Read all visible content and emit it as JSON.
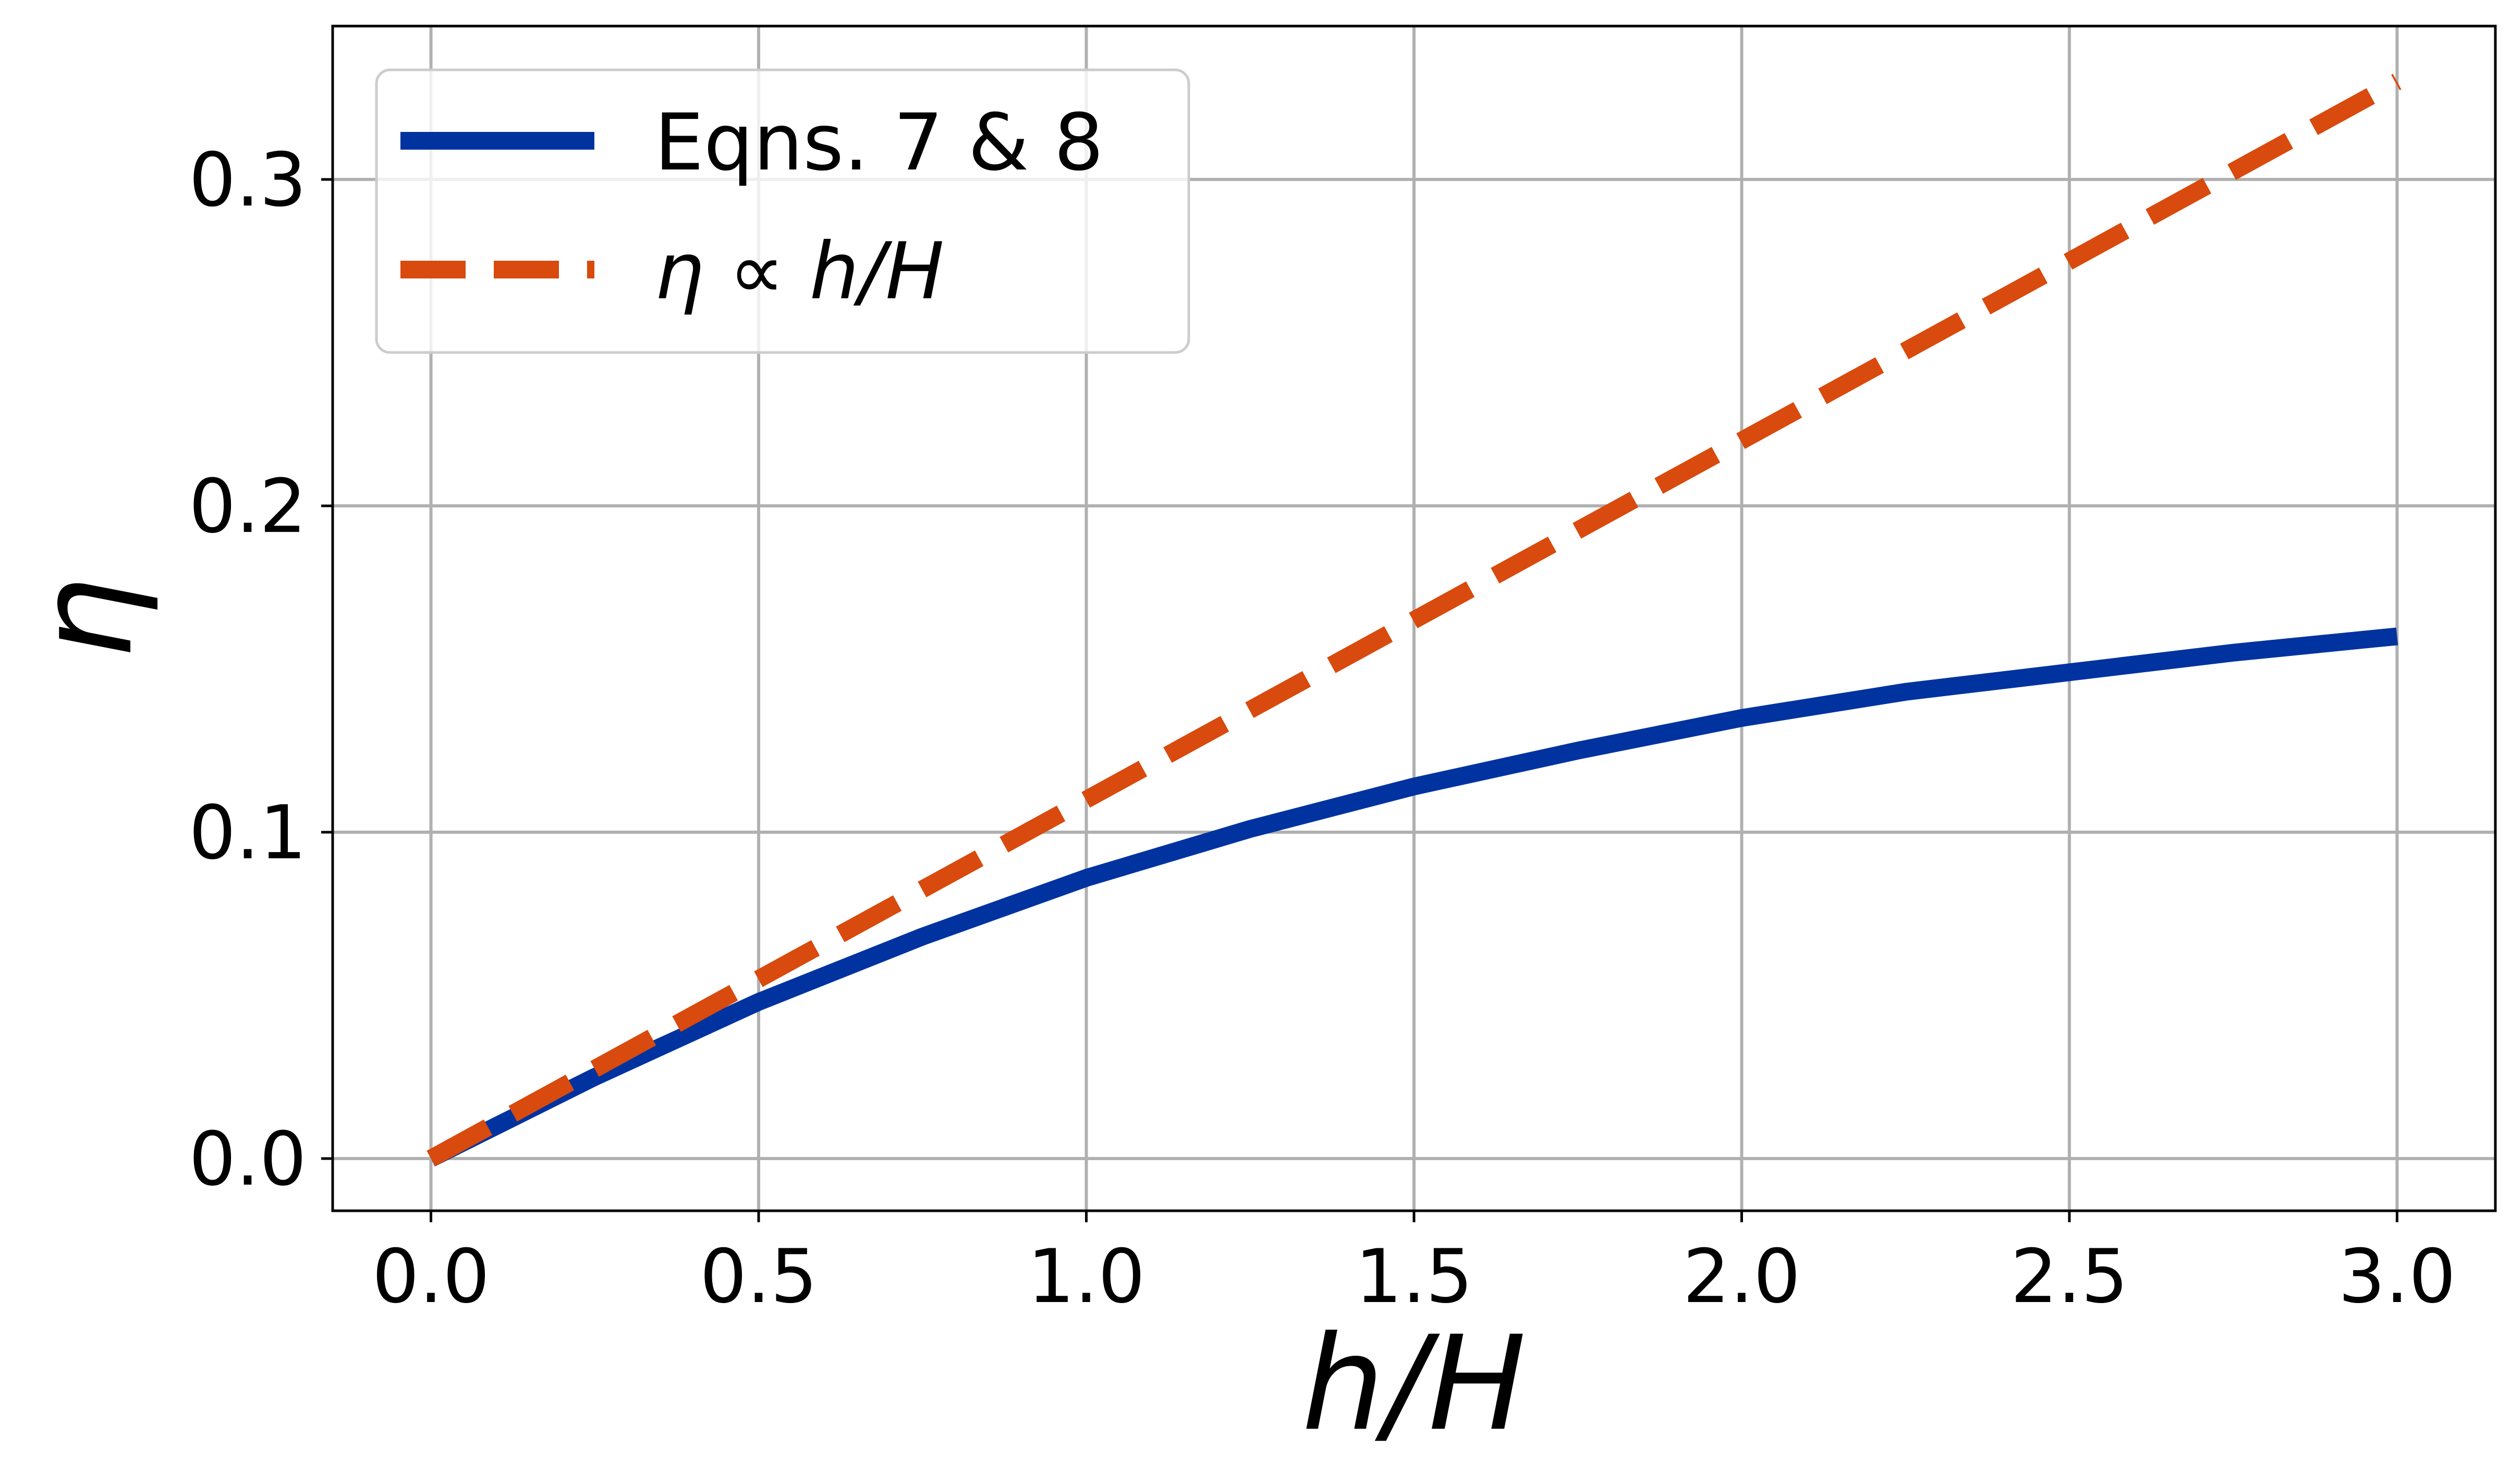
{
  "chart_data": {
    "type": "line",
    "xlabel": "h/H",
    "ylabel": "η",
    "xlim": [
      -0.15,
      3.15
    ],
    "ylim": [
      -0.016,
      0.347
    ],
    "xticks": [
      "0.0",
      "0.5",
      "1.0",
      "1.5",
      "2.0",
      "2.5",
      "3.0"
    ],
    "yticks": [
      "0.0",
      "0.1",
      "0.2",
      "0.3"
    ],
    "grid": true,
    "legend_position": "upper-left",
    "series": [
      {
        "name": "Eqns. 7 & 8",
        "style": "solid",
        "color": "#0033a0",
        "x": [
          0.0,
          0.25,
          0.5,
          0.75,
          1.0,
          1.25,
          1.5,
          1.75,
          2.0,
          2.25,
          2.5,
          2.75,
          3.0
        ],
        "y": [
          0.0,
          0.025,
          0.048,
          0.068,
          0.086,
          0.101,
          0.114,
          0.125,
          0.135,
          0.143,
          0.149,
          0.155,
          0.16
        ]
      },
      {
        "name": "η ∝ h/H",
        "style": "dashed",
        "color": "#d84a0d",
        "x": [
          0.0,
          3.0
        ],
        "y": [
          0.0,
          0.33
        ]
      }
    ]
  }
}
